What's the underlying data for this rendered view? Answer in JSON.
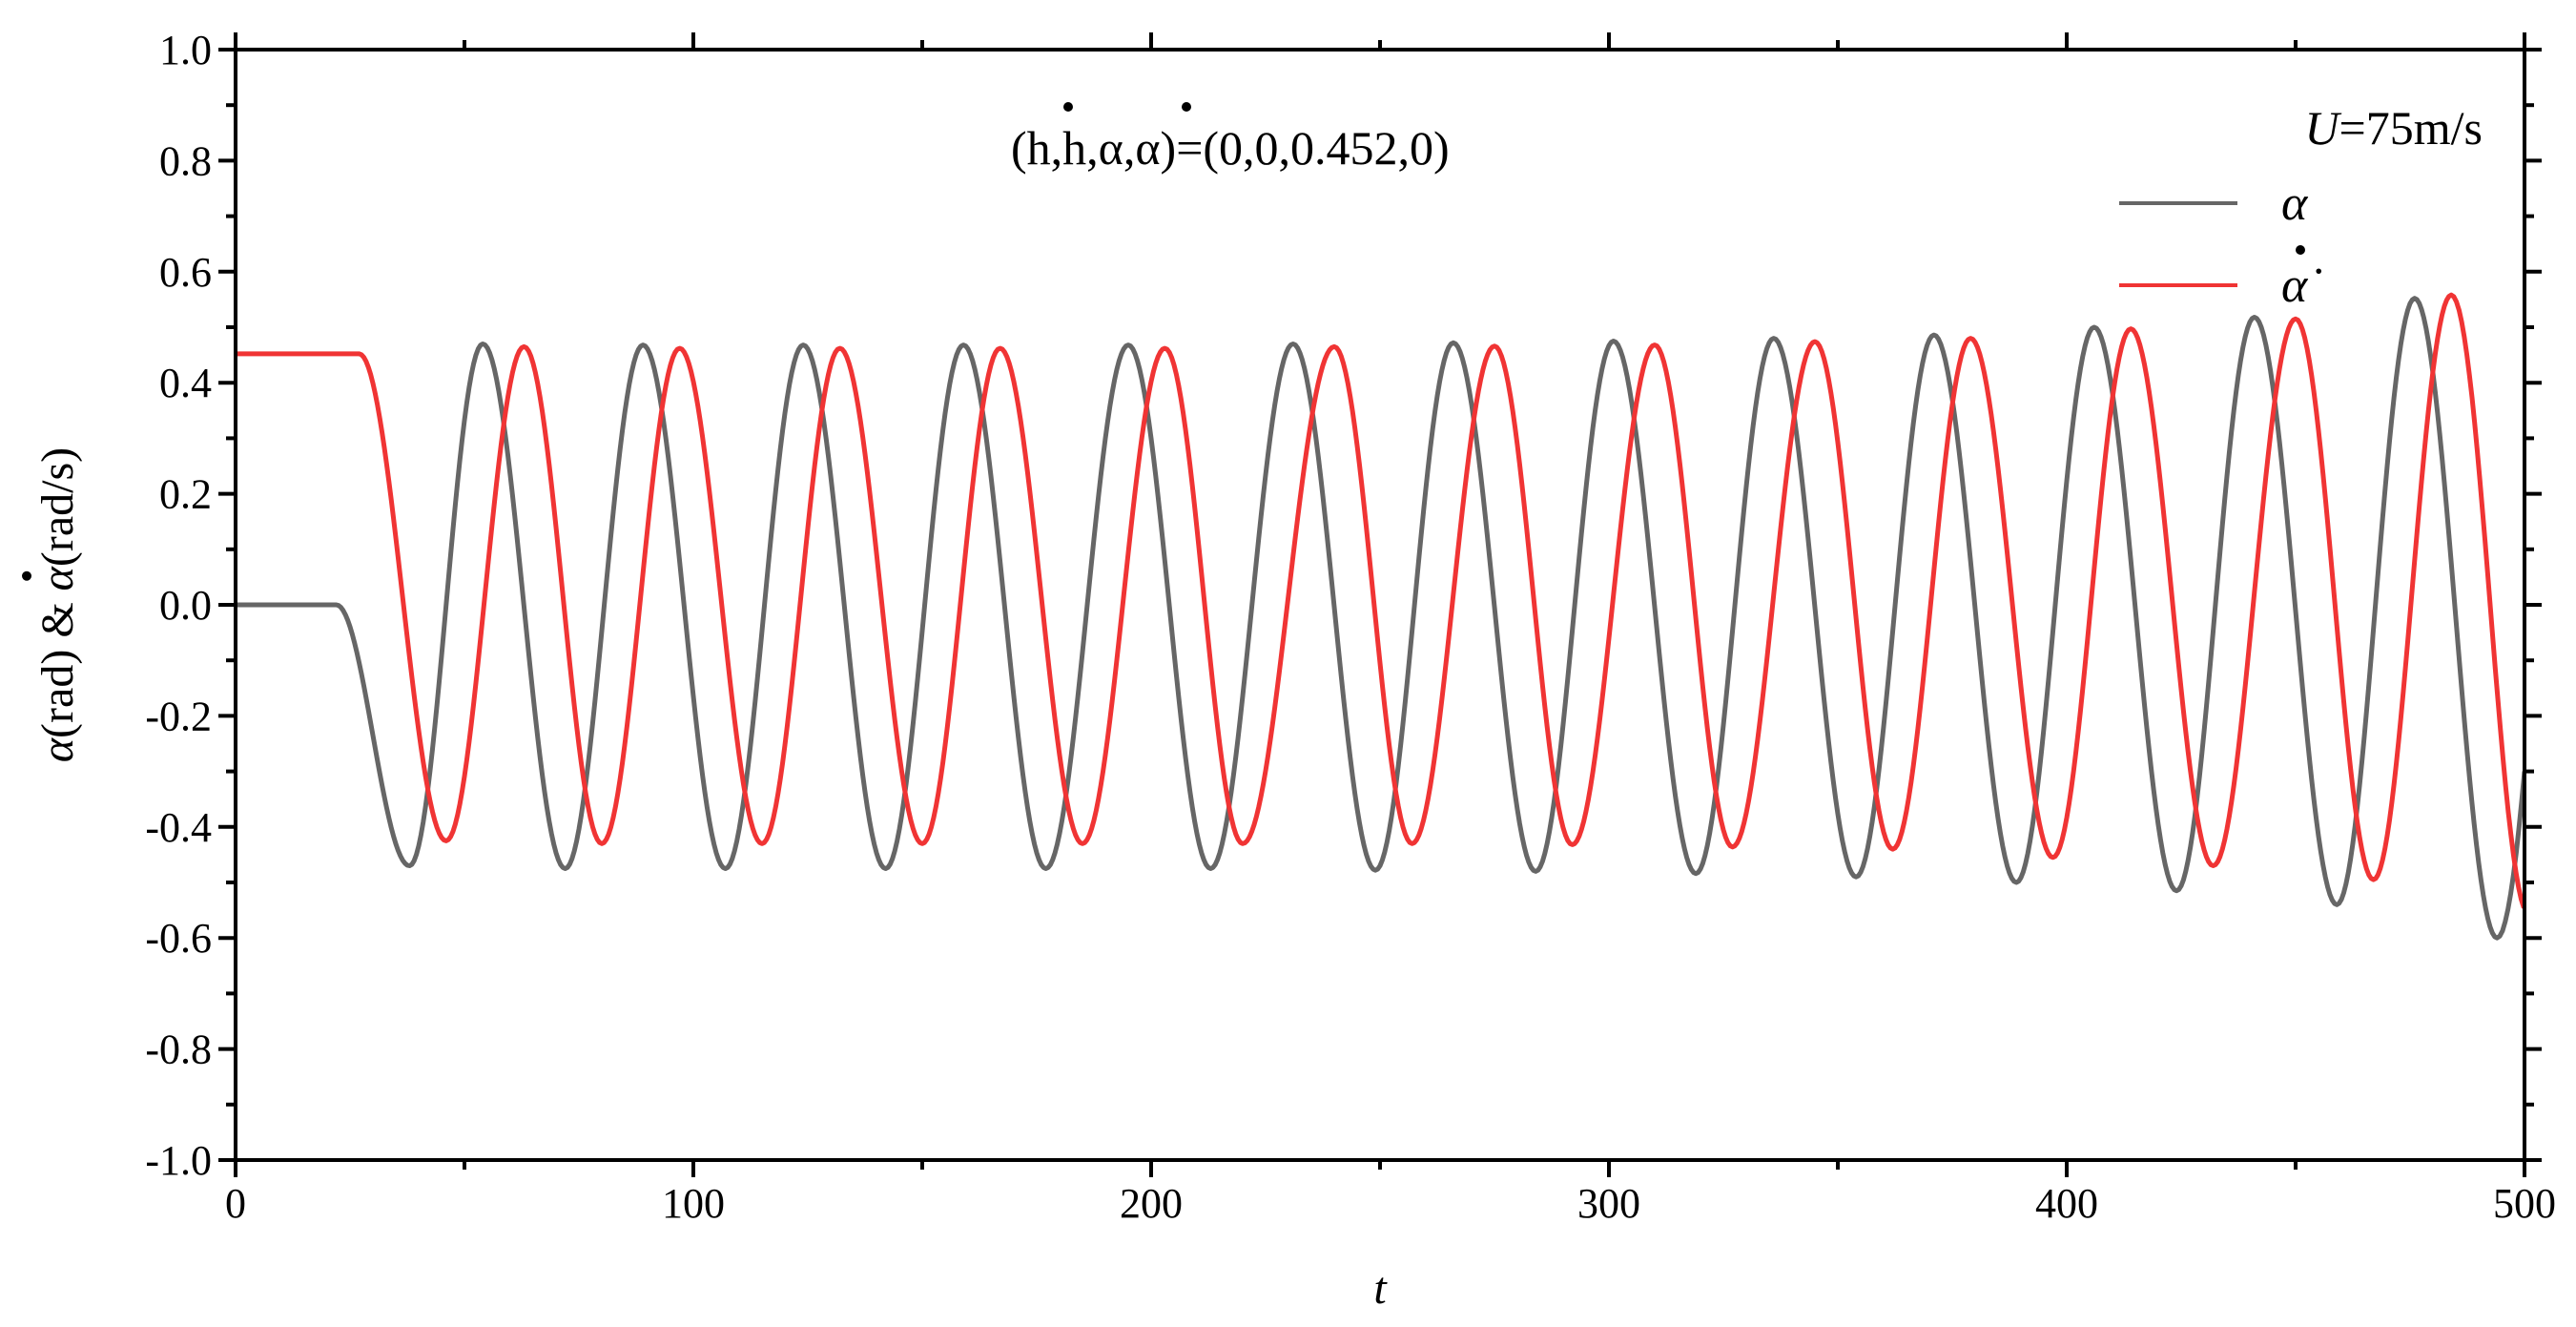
{
  "chart_data": {
    "type": "line",
    "xlabel": "t",
    "ylabel": {
      "part1": "α",
      "part2": "(rad) & ",
      "part3": "α",
      "part4": "(rad/s)"
    },
    "xlim": [
      0,
      500
    ],
    "ylim": [
      -1.0,
      1.0
    ],
    "xticks": [
      0,
      100,
      200,
      300,
      400,
      500
    ],
    "yticks": [
      1.0,
      0.8,
      0.6,
      0.4,
      0.2,
      0.0,
      -0.2,
      -0.4,
      -0.6,
      -0.8,
      -1.0
    ],
    "ytick_labels": [
      "1.0",
      "0.8",
      "0.6",
      "0.4",
      "0.2",
      "0.0",
      "-0.2",
      "-0.4",
      "-0.6",
      "-0.8",
      "-1.0"
    ],
    "grid": false,
    "legend_position": "top-right",
    "annotations": {
      "initial_condition": "(h,h,α,α)=(0,0,0.452,0)",
      "velocity_symbol": "U",
      "velocity_value": "=75m/s"
    },
    "series": [
      {
        "name": "α",
        "color": "#666666",
        "initial_value": 0.0,
        "transient_end_t": 22,
        "peaks": [
          [
            38,
            -0.47
          ],
          [
            54,
            0.47
          ],
          [
            72,
            -0.475
          ],
          [
            89,
            0.468
          ],
          [
            107,
            -0.475
          ],
          [
            124,
            0.468
          ],
          [
            142,
            -0.475
          ],
          [
            159,
            0.468
          ],
          [
            177,
            -0.475
          ],
          [
            195,
            0.468
          ],
          [
            213,
            -0.475
          ],
          [
            231,
            0.47
          ],
          [
            249,
            -0.478
          ],
          [
            266,
            0.472
          ],
          [
            284,
            -0.48
          ],
          [
            301,
            0.475
          ],
          [
            319,
            -0.484
          ],
          [
            336,
            0.48
          ],
          [
            354,
            -0.49
          ],
          [
            371,
            0.486
          ],
          [
            389,
            -0.5
          ],
          [
            406,
            0.5
          ],
          [
            424,
            -0.515
          ],
          [
            441,
            0.518
          ],
          [
            459,
            -0.54
          ],
          [
            476,
            0.552
          ],
          [
            494,
            -0.6
          ]
        ],
        "end_value": -0.22
      },
      {
        "name": "α̇",
        "color": "#f03434",
        "initial_value": 0.452,
        "transient_end_t": 27,
        "peaks": [
          [
            46,
            -0.425
          ],
          [
            63,
            0.465
          ],
          [
            80,
            -0.43
          ],
          [
            97,
            0.462
          ],
          [
            115,
            -0.43
          ],
          [
            132,
            0.462
          ],
          [
            150,
            -0.43
          ],
          [
            167,
            0.462
          ],
          [
            185,
            -0.43
          ],
          [
            203,
            0.462
          ],
          [
            220,
            -0.43
          ],
          [
            240,
            0.465
          ],
          [
            257,
            -0.43
          ],
          [
            275,
            0.466
          ],
          [
            292,
            -0.432
          ],
          [
            310,
            0.468
          ],
          [
            327,
            -0.436
          ],
          [
            345,
            0.474
          ],
          [
            362,
            -0.44
          ],
          [
            379,
            0.48
          ],
          [
            397,
            -0.455
          ],
          [
            414,
            0.497
          ],
          [
            432,
            -0.47
          ],
          [
            450,
            0.515
          ],
          [
            467,
            -0.495
          ],
          [
            484,
            0.558
          ]
        ],
        "end_value": -0.5
      }
    ]
  }
}
